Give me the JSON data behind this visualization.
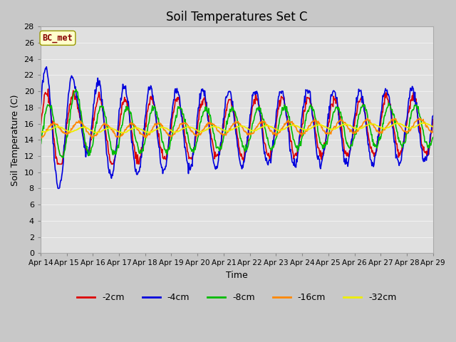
{
  "title": "Soil Temperatures Set C",
  "xlabel": "Time",
  "ylabel": "Soil Temperature (C)",
  "ylim": [
    0,
    28
  ],
  "yticks": [
    0,
    2,
    4,
    6,
    8,
    10,
    12,
    14,
    16,
    18,
    20,
    22,
    24,
    26,
    28
  ],
  "date_labels": [
    "Apr 14",
    "Apr 15",
    "Apr 16",
    "Apr 17",
    "Apr 18",
    "Apr 19",
    "Apr 20",
    "Apr 21",
    "Apr 22",
    "Apr 23",
    "Apr 24",
    "Apr 25",
    "Apr 26",
    "Apr 27",
    "Apr 28",
    "Apr 29"
  ],
  "series": [
    {
      "label": "-2cm",
      "color": "#dd0000",
      "lw": 1.2
    },
    {
      "label": "-4cm",
      "color": "#0000dd",
      "lw": 1.2
    },
    {
      "label": "-8cm",
      "color": "#00bb00",
      "lw": 1.2
    },
    {
      "label": "-16cm",
      "color": "#ff8800",
      "lw": 1.2
    },
    {
      "label": "-32cm",
      "color": "#eeee00",
      "lw": 1.2
    }
  ],
  "annotation_text": "BC_met",
  "annotation_box_color": "#ffffcc",
  "annotation_text_color": "#880000",
  "fig_bg_color": "#c8c8c8",
  "plot_bg_color": "#e0e0e0",
  "grid_color": "#f0f0f0",
  "days": 15,
  "n_points": 720
}
